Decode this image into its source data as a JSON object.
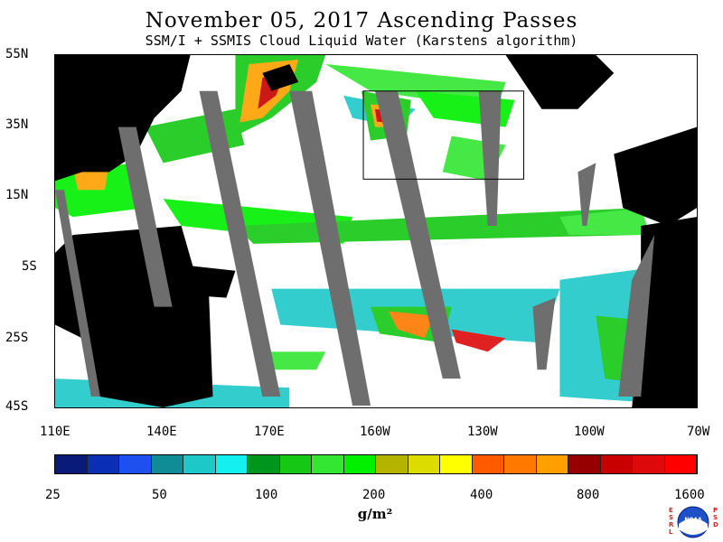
{
  "title": "November 05, 2017  Ascending Passes",
  "subtitle": "SSM/I + SSMIS Cloud Liquid Water (Karstens algorithm)",
  "lat_labels": [
    "55N",
    "35N",
    "15N",
    "5S",
    "25S",
    "45S"
  ],
  "lon_labels": [
    "110E",
    "140E",
    "170E",
    "160W",
    "130W",
    "100W",
    "70W"
  ],
  "colorbar": {
    "tick_labels": [
      "25",
      "50",
      "100",
      "200",
      "400",
      "800",
      "1600"
    ],
    "units": "g/m²",
    "colors": [
      "#0a1a78",
      "#0a2fb4",
      "#1e50f0",
      "#0f8c96",
      "#1ec8c8",
      "#14f0f0",
      "#00961e",
      "#14c814",
      "#32e632",
      "#00f000",
      "#b4b400",
      "#dcdc00",
      "#ffff00",
      "#ff5a00",
      "#ff7800",
      "#ffa000",
      "#960000",
      "#c80000",
      "#dc0a0a",
      "#ff0000"
    ]
  },
  "logo": {
    "left_letters": [
      "E",
      "S",
      "R",
      "L"
    ],
    "right_letters": [
      "P",
      "S",
      "D"
    ],
    "center_text": "NOAA"
  }
}
